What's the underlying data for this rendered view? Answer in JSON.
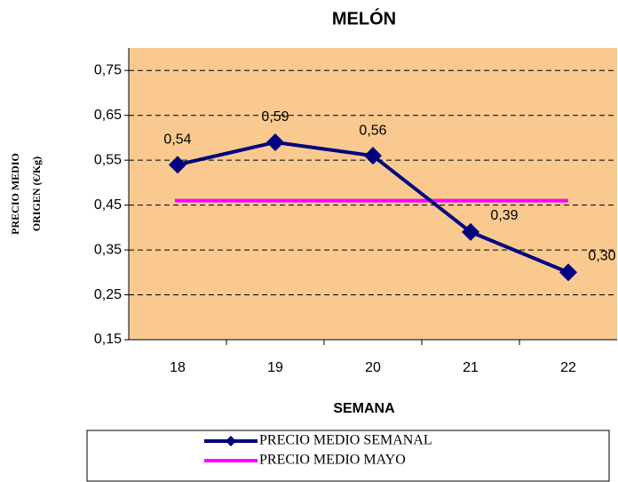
{
  "chart_data": {
    "type": "line",
    "title": "MELÓN",
    "x_label": "SEMANA",
    "y_label": [
      "PRECIO MEDIO",
      "ORIGEN (€/Kg)"
    ],
    "categories": [
      "18",
      "19",
      "20",
      "21",
      "22"
    ],
    "series": [
      {
        "name": "PRECIO MEDIO SEMANAL",
        "color": "#000080",
        "marker": "diamond",
        "values": [
          0.54,
          0.59,
          0.56,
          0.39,
          0.3
        ],
        "value_labels": [
          "0,54",
          "0,59",
          "0,56",
          "0,39",
          "0,30"
        ]
      },
      {
        "name": "PRECIO MEDIO MAYO",
        "color": "#ff00ff",
        "values": [
          0.46,
          0.46,
          0.46,
          0.46,
          0.46
        ]
      }
    ],
    "ylim": [
      0.15,
      0.8
    ],
    "yticks": [
      {
        "value": 0.15,
        "label": "0,15"
      },
      {
        "value": 0.25,
        "label": "0,25"
      },
      {
        "value": 0.35,
        "label": "0,35"
      },
      {
        "value": 0.45,
        "label": "0,45"
      },
      {
        "value": 0.55,
        "label": "0,55"
      },
      {
        "value": 0.65,
        "label": "0,65"
      },
      {
        "value": 0.75,
        "label": "0,75"
      }
    ],
    "grid": true,
    "plot_background": "#f9c98f",
    "legend": "bottom"
  }
}
